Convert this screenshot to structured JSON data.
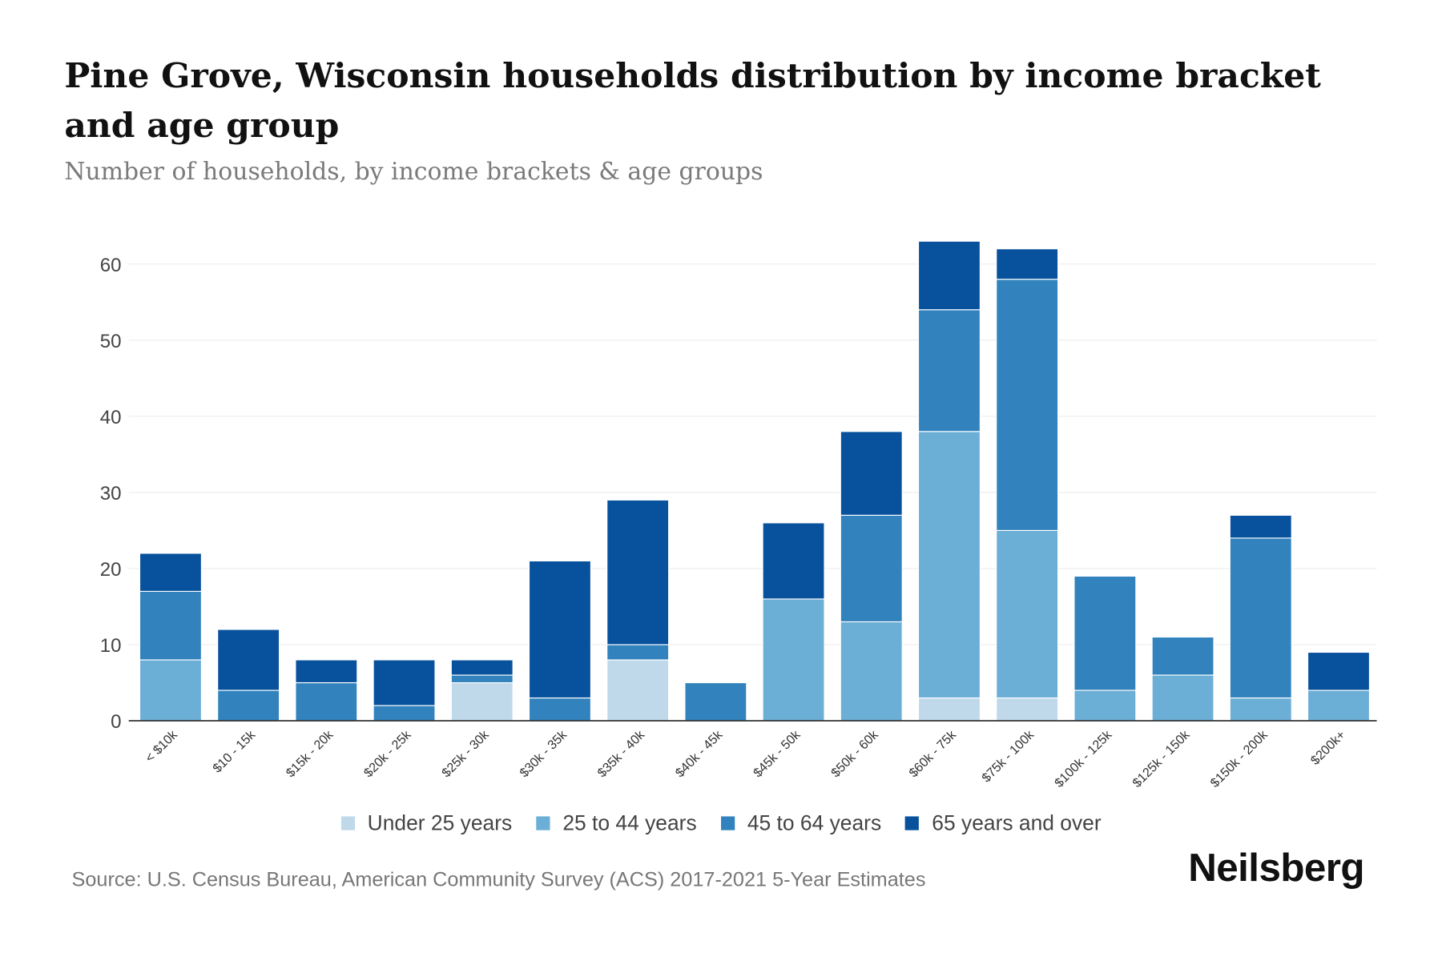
{
  "chart_data": {
    "type": "bar",
    "stacked": true,
    "title": "Pine Grove, Wisconsin households distribution by income bracket and age group",
    "subtitle": "Number of households, by income brackets & age groups",
    "xlabel": "",
    "ylabel": "",
    "ylim": [
      0,
      63
    ],
    "yticks": [
      "0",
      "10",
      "20",
      "30",
      "40",
      "50",
      "60"
    ],
    "grid": true,
    "legend_position": "bottom",
    "categories": [
      "< $10k",
      "$10 - 15k",
      "$15k - 20k",
      "$20k - 25k",
      "$25k - 30k",
      "$30k - 35k",
      "$35k - 40k",
      "$40k - 45k",
      "$45k - 50k",
      "$50k - 60k",
      "$60k - 75k",
      "$75k - 100k",
      "$100k - 125k",
      "$125k - 150k",
      "$150k - 200k",
      "$200k+"
    ],
    "series": [
      {
        "name": "Under 25 years",
        "color": "#bfd9ea",
        "values": [
          0,
          0,
          0,
          0,
          5,
          0,
          8,
          0,
          0,
          0,
          3,
          3,
          0,
          0,
          0,
          0
        ]
      },
      {
        "name": "25 to 44 years",
        "color": "#6baed6",
        "values": [
          8,
          0,
          0,
          0,
          0,
          0,
          0,
          0,
          16,
          13,
          35,
          22,
          4,
          6,
          3,
          4
        ]
      },
      {
        "name": "45 to 64 years",
        "color": "#3182bd",
        "values": [
          9,
          4,
          5,
          2,
          1,
          3,
          2,
          5,
          0,
          14,
          16,
          33,
          15,
          5,
          21,
          0
        ]
      },
      {
        "name": "65 years and over",
        "color": "#08519c",
        "values": [
          5,
          8,
          3,
          6,
          2,
          18,
          19,
          0,
          10,
          11,
          9,
          4,
          0,
          0,
          3,
          5
        ]
      }
    ]
  },
  "source": "Source: U.S. Census Bureau, American Community Survey (ACS) 2017-2021 5-Year Estimates",
  "brand": "Neilsberg"
}
